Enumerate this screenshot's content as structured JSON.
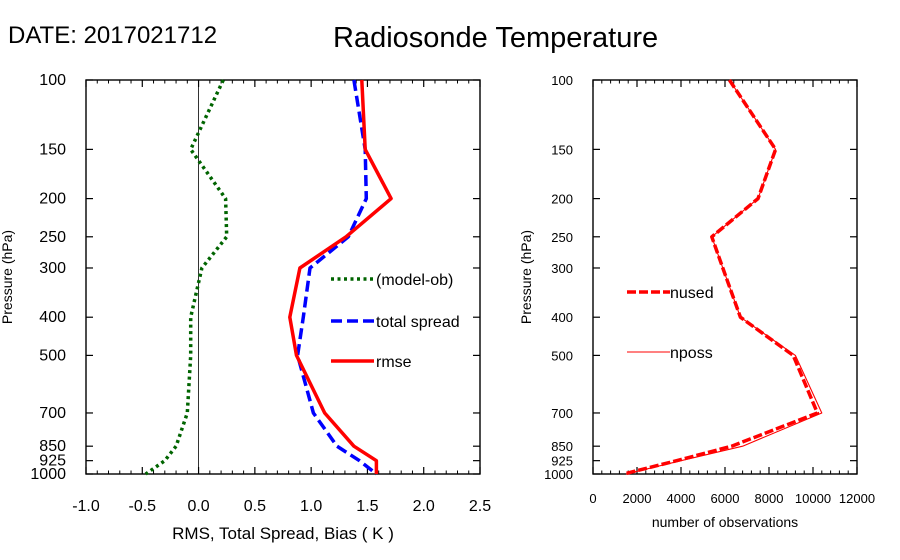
{
  "header": {
    "date_label": "DATE: 2017021712",
    "title": "Radiosonde Temperature"
  },
  "chart_data": [
    {
      "type": "line",
      "xlabel": "RMS, Total Spread, Bias ( K )",
      "ylabel": "Pressure (hPa)",
      "xlim": [
        -1.0,
        2.5
      ],
      "ylim": [
        1000,
        100
      ],
      "yscale": "log",
      "xticks": [
        -1.0,
        -0.5,
        0.0,
        0.5,
        1.0,
        1.5,
        2.0,
        2.5
      ],
      "xticklabels": [
        "-1.0",
        "-0.5",
        "0.0",
        "0.5",
        "1.0",
        "1.5",
        "2.0",
        "2.5"
      ],
      "yticks": [
        100,
        150,
        200,
        250,
        300,
        400,
        500,
        700,
        850,
        925,
        1000
      ],
      "yticklabels": [
        "100",
        "150",
        "200",
        "250",
        "300",
        "400",
        "500",
        "700",
        "850",
        "925",
        "1000"
      ],
      "zero_line": 0.0,
      "pressure": [
        100,
        150,
        200,
        250,
        300,
        400,
        500,
        700,
        850,
        925,
        1000
      ],
      "series": [
        {
          "name": "(model-ob)",
          "color": "#006400",
          "style": "dotted",
          "values": [
            0.22,
            -0.07,
            0.24,
            0.25,
            0.03,
            -0.07,
            -0.07,
            -0.1,
            -0.2,
            -0.3,
            -0.47
          ]
        },
        {
          "name": "total spread",
          "color": "#0000ff",
          "style": "dashed",
          "values": [
            1.38,
            1.48,
            1.49,
            1.33,
            0.99,
            0.93,
            0.88,
            1.02,
            1.23,
            1.43,
            1.58
          ]
        },
        {
          "name": "rmse",
          "color": "#ff0000",
          "style": "solid",
          "values": [
            1.45,
            1.48,
            1.71,
            1.31,
            0.9,
            0.81,
            0.87,
            1.12,
            1.38,
            1.58,
            1.58
          ]
        }
      ]
    },
    {
      "type": "line",
      "xlabel": "number of observations",
      "ylabel": "Pressure (hPa)",
      "xlim": [
        0,
        12000
      ],
      "ylim": [
        1000,
        100
      ],
      "yscale": "log",
      "xticks": [
        0,
        2000,
        4000,
        6000,
        8000,
        10000,
        12000
      ],
      "xticklabels": [
        "0",
        "2000",
        "4000",
        "6000",
        "8000",
        "10000",
        "12000"
      ],
      "yticks": [
        100,
        150,
        200,
        250,
        300,
        400,
        500,
        700,
        850,
        925,
        1000
      ],
      "yticklabels": [
        "100",
        "150",
        "200",
        "250",
        "300",
        "400",
        "500",
        "700",
        "850",
        "925",
        "1000"
      ],
      "pressure": [
        100,
        150,
        200,
        250,
        300,
        400,
        500,
        700,
        850,
        925,
        1000
      ],
      "series": [
        {
          "name": "nused",
          "color": "#ff0000",
          "style": "dashed-thick",
          "values": [
            6200,
            8300,
            7500,
            5400,
            5900,
            6700,
            9100,
            10200,
            6300,
            3800,
            1400
          ]
        },
        {
          "name": "nposs",
          "color": "#ff0000",
          "style": "thin",
          "values": [
            6200,
            8300,
            7500,
            5400,
            5900,
            6700,
            9200,
            10400,
            6800,
            4000,
            1500
          ]
        }
      ]
    }
  ]
}
